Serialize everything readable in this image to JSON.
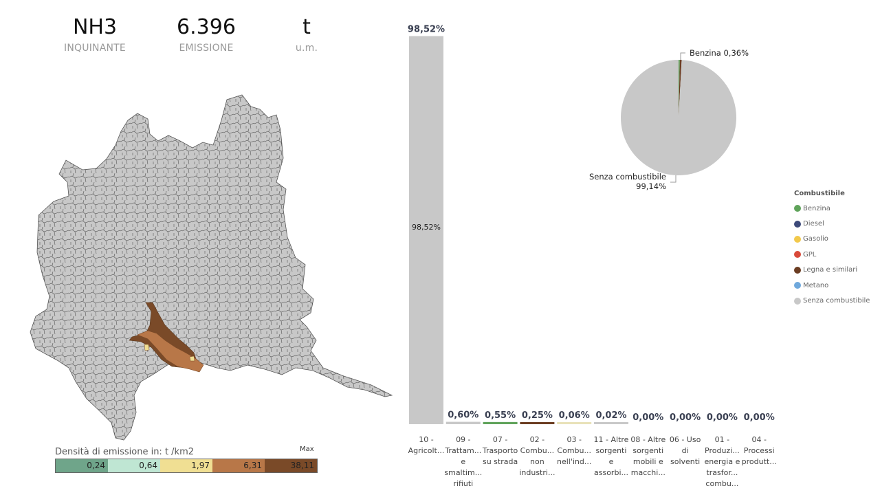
{
  "kpi": {
    "inquinante": {
      "value": "NH3",
      "label": "INQUINANTE"
    },
    "emissione": {
      "value": "6.396",
      "label": "EMISSIONE"
    },
    "um": {
      "value": "t",
      "label": "u.m."
    }
  },
  "map_legend": {
    "title": "Densità di emissione in:  t /km2",
    "max_label": "Max",
    "segments": [
      {
        "value": "0,24",
        "color": "#6fa58a"
      },
      {
        "value": "0,64",
        "color": "#bfe6d3"
      },
      {
        "value": "1,97",
        "color": "#f0df93"
      },
      {
        "value": "6,31",
        "color": "#b87748"
      },
      {
        "value": "38,11",
        "color": "#7a4a28"
      }
    ]
  },
  "colors": {
    "map_fill": "#c8c8c8",
    "map_stroke": "#555555",
    "hot_dark": "#7a4a28",
    "hot_mid": "#b87748",
    "hot_yellow": "#f0df93"
  },
  "chart_data": [
    {
      "type": "bar",
      "categories": [
        [
          "10 -",
          "Agricolt..."
        ],
        [
          "09 -",
          "Trattam...",
          "e",
          "smaltim...",
          "rifiuti"
        ],
        [
          "07 -",
          "Trasporto",
          "su strada"
        ],
        [
          "02 -",
          "Combu...",
          "non",
          "industri..."
        ],
        [
          "03 -",
          "Combu...",
          "nell'ind..."
        ],
        [
          "11 - Altre",
          "sorgenti",
          "e",
          "assorbi..."
        ],
        [
          "08 - Altre",
          "sorgenti",
          "mobili e",
          "macchi..."
        ],
        [
          "06 - Uso",
          "di",
          "solventi"
        ],
        [
          "01 -",
          "Produzi...",
          "energia e",
          "trasfor...",
          "combu..."
        ],
        [
          "04 -",
          "Processi",
          "produtt..."
        ]
      ],
      "values": [
        98.52,
        0.6,
        0.55,
        0.25,
        0.06,
        0.02,
        0.0,
        0.0,
        0.0,
        0.0
      ],
      "labels": [
        "98,52%",
        "0,60%",
        "0,55%",
        "0,25%",
        "0,06%",
        "0,02%",
        "0,00%",
        "0,00%",
        "0,00%",
        "0,00%"
      ],
      "inner_label": "98,52%",
      "colors": [
        "#c8c8c8",
        "#c8c8c8",
        "#5fa35a",
        "#6b3d22",
        "#e8e2b8",
        "#c8c8c8",
        "#c8c8c8",
        "#c8c8c8",
        "#c8c8c8",
        "#c8c8c8"
      ],
      "ylim": [
        0,
        100
      ]
    },
    {
      "type": "pie",
      "slices": [
        {
          "name": "Benzina",
          "value": 0.36,
          "label": "Benzina 0,36%",
          "color": "#5fa35a"
        },
        {
          "name": "Legna e similari",
          "value": 0.5,
          "label": "",
          "color": "#6b3d22"
        },
        {
          "name": "Senza combustibile",
          "value": 99.14,
          "label_line1": "Senza combustibile",
          "label_line2": "99,14%",
          "color": "#c8c8c8"
        }
      ],
      "legend_title": "Combustibile",
      "legend": [
        {
          "name": "Benzina",
          "color": "#5fa35a"
        },
        {
          "name": "Diesel",
          "color": "#3d4a7a"
        },
        {
          "name": "Gasolio",
          "color": "#f2c94c"
        },
        {
          "name": "GPL",
          "color": "#d94a3a"
        },
        {
          "name": "Legna e similari",
          "color": "#6b3d22"
        },
        {
          "name": "Metano",
          "color": "#6fa8dc"
        },
        {
          "name": "Senza combustibile",
          "color": "#c8c8c8"
        }
      ]
    }
  ]
}
